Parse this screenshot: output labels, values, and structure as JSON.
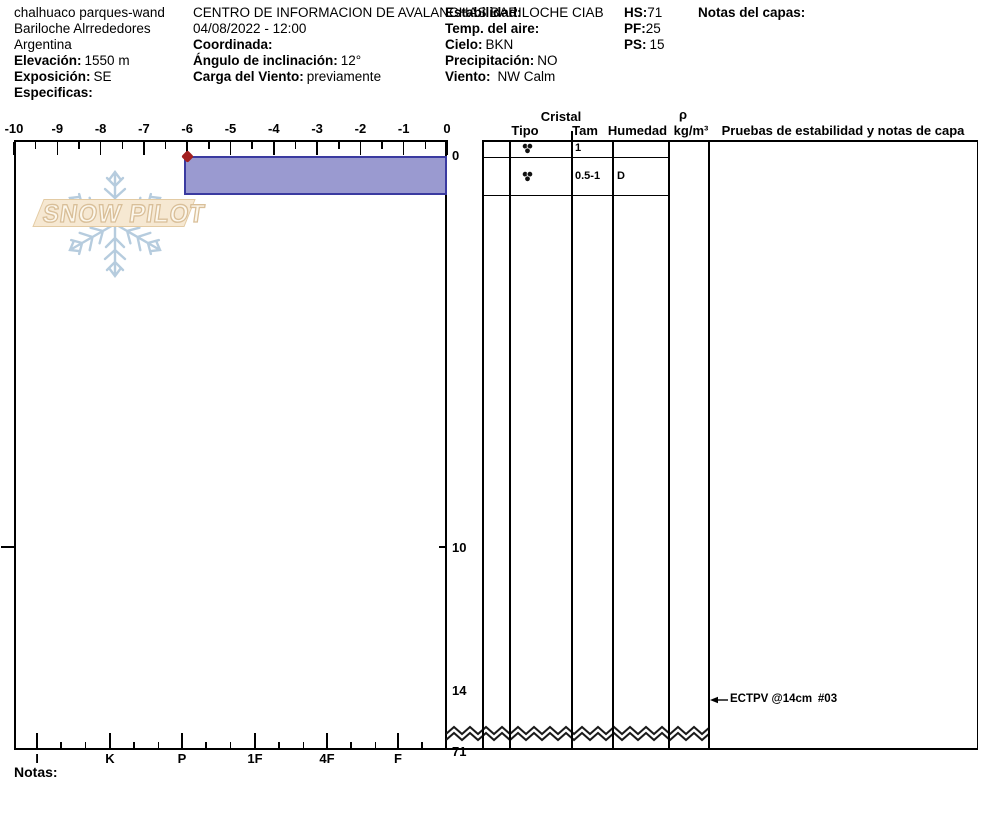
{
  "header": {
    "col1": {
      "site_name": "chalhuaco parques-wand",
      "region": "Bariloche Alrrededores",
      "country": "Argentina",
      "elevation_label": "Elevación:",
      "elevation_value": "1550 m",
      "aspect_label": "Exposición:",
      "aspect_value": "SE",
      "specifics_label": "Especificas:"
    },
    "col2": {
      "title": "CENTRO DE INFORMACION DE AVALANCHAS BARILOCHE CIAB",
      "datetime": "04/08/2022 - 12:00",
      "coordinates_label": "Coordinada:",
      "slope_angle_label": "Ángulo de inclinación:",
      "slope_angle_value": "12°",
      "wind_loading_label": "Carga del Viento:",
      "wind_loading_value": "previamente"
    },
    "col3": {
      "stability_label": "Estabilidad:",
      "air_temp_label": "Temp. del aire:",
      "sky_label": "Cielo:",
      "sky_value": "BKN",
      "precip_label": "Precipitación:",
      "precip_value": "NO",
      "wind_label": "Viento:",
      "wind_value": "NW Calm"
    },
    "col4": {
      "hs_label": "HS:",
      "hs_value": "71",
      "pf_label": "PF:",
      "pf_value": "25",
      "ps_label": "PS:",
      "ps_value": "15"
    },
    "col5": {
      "layer_notes_label": "Notas del capas:"
    }
  },
  "logo": {
    "text": "SNOW PILOT"
  },
  "table": {
    "header_cristal": "Cristal",
    "header_tipo": "Tipo",
    "header_tam": "Tam",
    "header_humedad": "Humedad",
    "header_rho": "ρ",
    "header_rho_units": "kg/m³",
    "header_tests": "Pruebas de estabilidad y notas de capa",
    "rows": [
      {
        "tipo_symbol": "melt-forms",
        "tam": "1",
        "humedad": ""
      },
      {
        "tipo_symbol": "melt-forms",
        "tam": "0.5-1",
        "humedad": "D"
      }
    ]
  },
  "notes_label": "Notas:",
  "chart_data": {
    "type": "snow-profile",
    "temp_axis": {
      "min": -10,
      "max": 0,
      "major_step": 1,
      "minor_step": 0.5,
      "labels": [
        "-10",
        "-9",
        "-8",
        "-7",
        "-6",
        "-5",
        "-4",
        "-3",
        "-2",
        "-1",
        "0"
      ]
    },
    "hardness_axis": {
      "labels": [
        "I",
        "K",
        "P",
        "1F",
        "4F",
        "F"
      ]
    },
    "depth_labels": [
      "0",
      "10",
      "14",
      "71"
    ],
    "total_depth_cm": 71,
    "scale_break_after_cm": 14,
    "layers": [
      {
        "top_cm": 0,
        "bottom_cm": 1,
        "hardness": "P",
        "grain_type": "MF",
        "grain_size_mm": "1"
      },
      {
        "top_cm": 1,
        "bottom_cm": 14,
        "grain_type": "MF",
        "grain_size_mm": "0.5-1",
        "moisture": "D"
      }
    ],
    "surface_temp_point": {
      "temp_c": -6,
      "depth_cm": 0
    },
    "stability_tests": [
      {
        "label": "ECTPV @14cm",
        "number": "#03",
        "depth_cm": 14
      }
    ],
    "colors": {
      "bar_fill": "#9a9ad0",
      "bar_border": "#3a3aa0",
      "temp_point": "#a32020"
    }
  }
}
